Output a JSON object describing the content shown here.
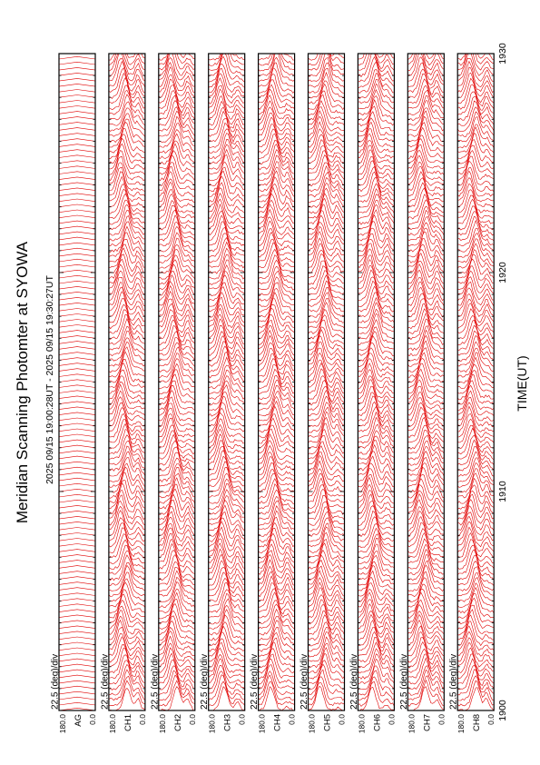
{
  "title": "Meridian Scanning Photomter at SYOWA",
  "subtitle": "2025 09/15 19:00:28UT - 2025 09/15 19:30:27UT",
  "chart_data": {
    "type": "line",
    "title": "Meridian Scanning Photomter at SYOWA",
    "subtitle": "2025 09/15 19:00:28UT - 2025 09/15 19:30:27UT",
    "xlabel": "TIME(UT)",
    "x_ticks": [
      "1900",
      "1910",
      "1920",
      "1930"
    ],
    "xlim": [
      0,
      30
    ],
    "ylim": [
      0.0,
      180.0
    ],
    "y_tick_labels": [
      "180.0",
      "0.0"
    ],
    "scale_label": "22.5 (deg)/div",
    "line_color": "#e00000",
    "grid": false,
    "panels": [
      {
        "channel": "AG"
      },
      {
        "channel": "CH1"
      },
      {
        "channel": "CH2"
      },
      {
        "channel": "CH3"
      },
      {
        "channel": "CH4"
      },
      {
        "channel": "CH5"
      },
      {
        "channel": "CH6"
      },
      {
        "channel": "CH7"
      },
      {
        "channel": "CH8"
      }
    ]
  }
}
